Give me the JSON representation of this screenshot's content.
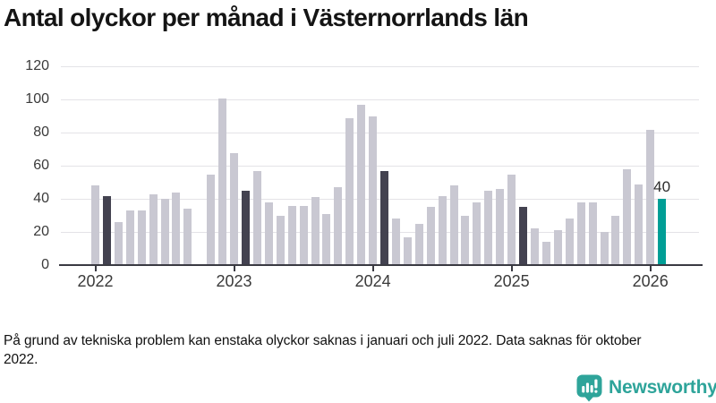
{
  "title": "Antal olyckor per månad i Västernorrlands län",
  "footnote": "På grund av tekniska problem kan enstaka olyckor saknas i januari och juli 2022. Data saknas för oktober 2022.",
  "annotation": {
    "text": "40"
  },
  "branding": {
    "name": "Newsworthy",
    "icon": "newsworthy-speech-bubble-chart-icon",
    "color": "#2ea49a"
  },
  "colors": {
    "bar_default": "#c9c8d2",
    "bar_highlight": "#434250",
    "bar_current": "#009e96",
    "axis_text": "#3a3a3a",
    "axis_line": "#3a3a42",
    "gridline": "#e4e3e7",
    "title_text": "#141414"
  },
  "chart_data": {
    "type": "bar",
    "title": "Antal olyckor per månad i Västernorrlands län",
    "xlabel": "",
    "ylabel": "",
    "ylim": [
      0,
      120
    ],
    "y_ticks": [
      0,
      20,
      40,
      60,
      80,
      100,
      120
    ],
    "x_tick_labels": [
      "2022",
      "2023",
      "2024",
      "2025",
      "2026"
    ],
    "grid": "horizontal",
    "legend": "none",
    "notes": "dark bars = February each year; teal bar = February 2026 (latest, labeled 40); October 2022 has no bar",
    "months": [
      {
        "month": "2022-01",
        "value": 48,
        "kind": "normal"
      },
      {
        "month": "2022-02",
        "value": 42,
        "kind": "highlight"
      },
      {
        "month": "2022-03",
        "value": 26,
        "kind": "normal"
      },
      {
        "month": "2022-04",
        "value": 33,
        "kind": "normal"
      },
      {
        "month": "2022-05",
        "value": 33,
        "kind": "normal"
      },
      {
        "month": "2022-06",
        "value": 43,
        "kind": "normal"
      },
      {
        "month": "2022-07",
        "value": 40,
        "kind": "normal"
      },
      {
        "month": "2022-08",
        "value": 44,
        "kind": "normal"
      },
      {
        "month": "2022-09",
        "value": 34,
        "kind": "normal"
      },
      {
        "month": "2022-10",
        "value": null,
        "kind": "missing"
      },
      {
        "month": "2022-11",
        "value": 55,
        "kind": "normal"
      },
      {
        "month": "2022-12",
        "value": 101,
        "kind": "normal"
      },
      {
        "month": "2023-01",
        "value": 68,
        "kind": "normal"
      },
      {
        "month": "2023-02",
        "value": 45,
        "kind": "highlight"
      },
      {
        "month": "2023-03",
        "value": 57,
        "kind": "normal"
      },
      {
        "month": "2023-04",
        "value": 38,
        "kind": "normal"
      },
      {
        "month": "2023-05",
        "value": 30,
        "kind": "normal"
      },
      {
        "month": "2023-06",
        "value": 36,
        "kind": "normal"
      },
      {
        "month": "2023-07",
        "value": 36,
        "kind": "normal"
      },
      {
        "month": "2023-08",
        "value": 41,
        "kind": "normal"
      },
      {
        "month": "2023-09",
        "value": 31,
        "kind": "normal"
      },
      {
        "month": "2023-10",
        "value": 47,
        "kind": "normal"
      },
      {
        "month": "2023-11",
        "value": 89,
        "kind": "normal"
      },
      {
        "month": "2023-12",
        "value": 97,
        "kind": "normal"
      },
      {
        "month": "2024-01",
        "value": 90,
        "kind": "normal"
      },
      {
        "month": "2024-02",
        "value": 57,
        "kind": "highlight"
      },
      {
        "month": "2024-03",
        "value": 28,
        "kind": "normal"
      },
      {
        "month": "2024-04",
        "value": 17,
        "kind": "normal"
      },
      {
        "month": "2024-05",
        "value": 25,
        "kind": "normal"
      },
      {
        "month": "2024-06",
        "value": 35,
        "kind": "normal"
      },
      {
        "month": "2024-07",
        "value": 42,
        "kind": "normal"
      },
      {
        "month": "2024-08",
        "value": 48,
        "kind": "normal"
      },
      {
        "month": "2024-09",
        "value": 30,
        "kind": "normal"
      },
      {
        "month": "2024-10",
        "value": 38,
        "kind": "normal"
      },
      {
        "month": "2024-11",
        "value": 45,
        "kind": "normal"
      },
      {
        "month": "2024-12",
        "value": 46,
        "kind": "normal"
      },
      {
        "month": "2025-01",
        "value": 55,
        "kind": "normal"
      },
      {
        "month": "2025-02",
        "value": 35,
        "kind": "highlight"
      },
      {
        "month": "2025-03",
        "value": 22,
        "kind": "normal"
      },
      {
        "month": "2025-04",
        "value": 14,
        "kind": "normal"
      },
      {
        "month": "2025-05",
        "value": 21,
        "kind": "normal"
      },
      {
        "month": "2025-06",
        "value": 28,
        "kind": "normal"
      },
      {
        "month": "2025-07",
        "value": 38,
        "kind": "normal"
      },
      {
        "month": "2025-08",
        "value": 38,
        "kind": "normal"
      },
      {
        "month": "2025-09",
        "value": 20,
        "kind": "normal"
      },
      {
        "month": "2025-10",
        "value": 30,
        "kind": "normal"
      },
      {
        "month": "2025-11",
        "value": 58,
        "kind": "normal"
      },
      {
        "month": "2025-12",
        "value": 49,
        "kind": "normal"
      },
      {
        "month": "2026-01",
        "value": 82,
        "kind": "normal"
      },
      {
        "month": "2026-02",
        "value": 40,
        "kind": "current"
      }
    ]
  }
}
